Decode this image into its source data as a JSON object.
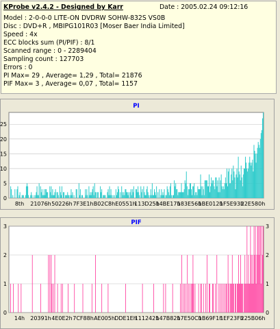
{
  "info": {
    "app_title": "KProbe v2.4.2 - Designed by Karr",
    "date": "Date : 2005.02.24 09:12:16",
    "lines": [
      "Model : 2-0-0-0 LITE-ON DVDRW SOHW-832S  VS0B",
      "Disc : DVD+R , MBIPG101R03 [Moser Baer India Limited]",
      "Speed : 4x",
      "ECC blocks sum (PI/PIF) : 8/1",
      "Scanned range : 0 - 2289404",
      "Sampling count : 127703",
      "Errors : 0",
      "PI Max= 29 , Average= 1,29 , Total= 21876",
      "PIF Max= 3 , Average= 0,07 , Total= 1157"
    ]
  },
  "colors": {
    "pi": "#33cccc",
    "pif": "#ff3399",
    "title": "#0000ff",
    "panel": "#ffffe1",
    "plot_bg": "#ffffff",
    "chart_bg": "#ece9d8"
  },
  "chart_data": [
    {
      "type": "area",
      "title": "PI",
      "xlabel": "",
      "ylabel": "",
      "ylim": [
        0,
        29
      ],
      "yticks": [
        "0",
        "5",
        "10",
        "15",
        "20",
        "25"
      ],
      "x_tick_labels": [
        "8th",
        "21076h",
        "50226h",
        "7F3E1h",
        "B02C8h",
        "E0551h",
        "113D25h",
        "14BE17h",
        "183E56h",
        "1BE012h",
        "1F5E93h",
        "22E580h"
      ],
      "series": [
        {
          "values": [
            0,
            0,
            4,
            3,
            0,
            1,
            0,
            0,
            3,
            0,
            0,
            3,
            4,
            0,
            1,
            2,
            0,
            0,
            1,
            1,
            1,
            0,
            0,
            1,
            4,
            5,
            4,
            1,
            0,
            0,
            1,
            2,
            1,
            0,
            0,
            1,
            0,
            1,
            2,
            4,
            1,
            1,
            5,
            0,
            4,
            2,
            3,
            1,
            1,
            3,
            1,
            3,
            3,
            2,
            2,
            0,
            0,
            4,
            2,
            4,
            1,
            3,
            1,
            1,
            2,
            3,
            0,
            2,
            2,
            1,
            0,
            4,
            2,
            1,
            4,
            0,
            2,
            2,
            0,
            1,
            1,
            1,
            2,
            1,
            1,
            0,
            1,
            3,
            1,
            2,
            0,
            1,
            0,
            0,
            3,
            3,
            0,
            0,
            5,
            1,
            3,
            0,
            1,
            1,
            0,
            0,
            0,
            3,
            1,
            3,
            1,
            0,
            4,
            1,
            2,
            1,
            2,
            3,
            4,
            1,
            5,
            2,
            2,
            0,
            2,
            2,
            0,
            0,
            4,
            2,
            3,
            0,
            1,
            1,
            1,
            1,
            0,
            0,
            2,
            3,
            1,
            4,
            1,
            3,
            1,
            0,
            1,
            0,
            1,
            0,
            3,
            1,
            2,
            4,
            3,
            0,
            2,
            0,
            4,
            2,
            1,
            2,
            1,
            3,
            3,
            2,
            2,
            1,
            2,
            0,
            2,
            3,
            1,
            3,
            2,
            4,
            0,
            0,
            3,
            3,
            2,
            4,
            2,
            1,
            0,
            4,
            2,
            3,
            0,
            4,
            2,
            1,
            1,
            3,
            4,
            2,
            1,
            0,
            1,
            3,
            1,
            5,
            1,
            1,
            3,
            2,
            1,
            4,
            0,
            2,
            0,
            3,
            0,
            1,
            3,
            1,
            2,
            1,
            3,
            0,
            1,
            1,
            4,
            3,
            2,
            1,
            4,
            5,
            1,
            0,
            1,
            1,
            6,
            4,
            5,
            3,
            3,
            1,
            2,
            2,
            2,
            2,
            5,
            2,
            2,
            2,
            3,
            6,
            5,
            9,
            4,
            1,
            3,
            3,
            5,
            5,
            3,
            1,
            4,
            4,
            5,
            1,
            2,
            2,
            1,
            4,
            3,
            3,
            3,
            8,
            4,
            1,
            4,
            3,
            1,
            6,
            6,
            6,
            6,
            4,
            4,
            8,
            2,
            4,
            7,
            5,
            6,
            6,
            4,
            3,
            7,
            7,
            4,
            6,
            2,
            7,
            2,
            6,
            8,
            4,
            3,
            4,
            3,
            5,
            7,
            5,
            10,
            4,
            9,
            10,
            5,
            5,
            8,
            10,
            6,
            11,
            9,
            7,
            3,
            8,
            10,
            7,
            14,
            9,
            8,
            6,
            11,
            7,
            4,
            8,
            10,
            10,
            14,
            12,
            10,
            9,
            10,
            12,
            14,
            12,
            11,
            12,
            13,
            9,
            18,
            16,
            15,
            12,
            15,
            17,
            19,
            18,
            17,
            20,
            22,
            23,
            27,
            29
          ]
        }
      ]
    },
    {
      "type": "bar",
      "title": "PIF",
      "xlabel": "",
      "ylabel": "",
      "ylim": [
        0,
        3
      ],
      "yticks": [
        "0",
        "1",
        "2",
        "3"
      ],
      "x_tick_labels": [
        "14h",
        "20391h",
        "4E0E2h",
        "7CF88h",
        "AE005h",
        "DDE1Eh",
        "111242h",
        "147B82h",
        "17E50Ch",
        "1B69F1h",
        "1EF23Fh",
        "225B06h"
      ],
      "series": [
        {
          "values": [
            0,
            0,
            1,
            0,
            0,
            0,
            1,
            0,
            0,
            0,
            0,
            0,
            0,
            1,
            0,
            0,
            0,
            1,
            0,
            0,
            0,
            0,
            0,
            0,
            0,
            0,
            0,
            0,
            0,
            0,
            0,
            0,
            0,
            2,
            0,
            0,
            0,
            0,
            0,
            0,
            0,
            0,
            0,
            0,
            0,
            1,
            0,
            0,
            0,
            0,
            0,
            0,
            0,
            0,
            0,
            0,
            2,
            0,
            2,
            0,
            2,
            1,
            0,
            1,
            0,
            2,
            0,
            0,
            0,
            1,
            0,
            0,
            0,
            0,
            1,
            0,
            1,
            0,
            0,
            0,
            0,
            0,
            0,
            0,
            1,
            0,
            0,
            0,
            0,
            0,
            0,
            0,
            0,
            1,
            0,
            0,
            0,
            0,
            0,
            0,
            0,
            0,
            0,
            0,
            0,
            1,
            0,
            0,
            0,
            0,
            0,
            0,
            0,
            0,
            0,
            0,
            0,
            0,
            1,
            0,
            0,
            0,
            0,
            2,
            0,
            0,
            0,
            0,
            0,
            0,
            0,
            0,
            1,
            0,
            0,
            0,
            0,
            0,
            0,
            0,
            0,
            1,
            0,
            0,
            0,
            0,
            0,
            0,
            0,
            0,
            0,
            0,
            0,
            0,
            0,
            0,
            0,
            0,
            0,
            0,
            0,
            0,
            0,
            0,
            0,
            0,
            1,
            0,
            0,
            0,
            0,
            0,
            0,
            0,
            0,
            0,
            0,
            0,
            0,
            0,
            0,
            0,
            0,
            0,
            0,
            0,
            0,
            0,
            0,
            0,
            1,
            0,
            0,
            0,
            0,
            0,
            0,
            0,
            0,
            0,
            0,
            0,
            0,
            0,
            0,
            0,
            1,
            0,
            0,
            0,
            0,
            0,
            0,
            0,
            0,
            0,
            0,
            0,
            0,
            0,
            1,
            0,
            0,
            1,
            0,
            0,
            0,
            0,
            0,
            0,
            0,
            0,
            0,
            1,
            0,
            0,
            0,
            0,
            0,
            0,
            0,
            0,
            0,
            0,
            1,
            0,
            2,
            0,
            1,
            0,
            1,
            0,
            1,
            0,
            2,
            0,
            1,
            0,
            1,
            0,
            1,
            1,
            2,
            1,
            0,
            1,
            0,
            0,
            0,
            0,
            1,
            0,
            0,
            1,
            1,
            0,
            0,
            1,
            0,
            0,
            1,
            0,
            2,
            0,
            0,
            1,
            1,
            0,
            0,
            0,
            1,
            1,
            0,
            0,
            1,
            0,
            2,
            0,
            0,
            1,
            0,
            1,
            0,
            1,
            0,
            1,
            0,
            1,
            0,
            1,
            1,
            0,
            2,
            1,
            0,
            1,
            1,
            1,
            2,
            1,
            1,
            0,
            1,
            1,
            0,
            1,
            1,
            2,
            1,
            1,
            2,
            1,
            1,
            1,
            0,
            1,
            2,
            1,
            1,
            3,
            1,
            2,
            1,
            1,
            3,
            2,
            1,
            2,
            1,
            3,
            2,
            3,
            1,
            2,
            3,
            3,
            2,
            3,
            3,
            1,
            3,
            2,
            3
          ]
        }
      ]
    }
  ]
}
